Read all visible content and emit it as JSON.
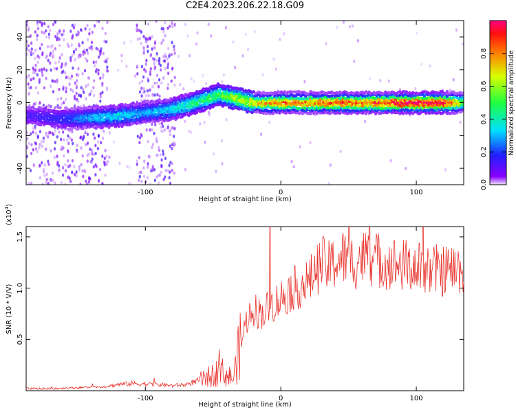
{
  "title": "C2E4.2023.206.22.18.G09",
  "colors": {
    "line": "#e8302a",
    "background": "#ffffff",
    "spectrum_low": "#7a00ff",
    "spectrum_high": "#ff0060"
  },
  "chart_data": [
    {
      "type": "heatmap",
      "title": "C2E4.2023.206.22.18.G09",
      "xlabel": "Height of straight line (km)",
      "ylabel": "Frequency (Hz)",
      "xlim": [
        -188,
        135
      ],
      "ylim": [
        -50,
        50
      ],
      "xticks": [
        -100,
        0,
        100
      ],
      "yticks": [
        -40,
        -20,
        0,
        20,
        40
      ],
      "colorbar": {
        "label": "Normalized spectral amplitude",
        "range": [
          0,
          1
        ],
        "ticks": [
          0.0,
          0.2,
          0.4,
          0.6,
          0.8
        ],
        "colormap": "rainbow (purple-blue-cyan-green-yellow-red-magenta)"
      },
      "ridge": {
        "x": [
          -180,
          -160,
          -140,
          -120,
          -100,
          -80,
          -60,
          -45,
          -35,
          -20,
          0,
          20,
          40,
          60,
          80,
          100,
          120,
          135
        ],
        "frequency": [
          -8,
          -10,
          -9,
          -8,
          -6,
          -4,
          1,
          5,
          3,
          0,
          0,
          0,
          0,
          0,
          0,
          0,
          0,
          0
        ],
        "amplitude": [
          0.15,
          0.2,
          0.3,
          0.35,
          0.3,
          0.35,
          0.45,
          0.5,
          0.6,
          0.7,
          0.8,
          0.8,
          0.85,
          0.85,
          0.9,
          1.0,
          0.95,
          0.55
        ]
      },
      "noise_regions": [
        [
          -188,
          -128
        ],
        [
          -108,
          -78
        ]
      ],
      "grid": false
    },
    {
      "type": "line",
      "xlabel": "Height of straight line (km)",
      "ylabel": "SNR (10 * V/V)",
      "y_multiplier": "(x10^4)",
      "xlim": [
        -188,
        135
      ],
      "ylim": [
        0,
        1.6
      ],
      "xticks": [
        -100,
        0,
        100
      ],
      "yticks": [
        0.5,
        1.0,
        1.5
      ],
      "grid": false,
      "series": [
        {
          "x": [
            -188,
            -170,
            -150,
            -130,
            -120,
            -110,
            -90,
            -80,
            -70,
            -60,
            -50,
            -45,
            -40,
            -35,
            -30,
            -25,
            -20,
            -15,
            -10,
            -5,
            0,
            10,
            20,
            25,
            30,
            35,
            40,
            45,
            50,
            55,
            60,
            70,
            80,
            90,
            100,
            110,
            120,
            130,
            135
          ],
          "y": [
            0.02,
            0.02,
            0.03,
            0.04,
            0.06,
            0.07,
            0.06,
            0.05,
            0.06,
            0.1,
            0.15,
            0.2,
            0.15,
            0.12,
            0.45,
            0.7,
            0.8,
            0.75,
            0.8,
            0.85,
            0.9,
            1.0,
            1.05,
            1.15,
            1.25,
            1.2,
            1.25,
            1.3,
            1.28,
            1.25,
            1.3,
            1.28,
            1.25,
            1.22,
            1.2,
            1.18,
            1.17,
            1.18,
            1.2
          ]
        }
      ]
    }
  ],
  "labels": {
    "top_xlabel": "Height of straight line (km)",
    "top_ylabel": "Frequency (Hz)",
    "bottom_xlabel": "Height of straight line (km)",
    "bottom_ylabel": "SNR (10 * V/V)",
    "bottom_multiplier": "(x10^4)",
    "colorbar_label": "Normalized spectral amplitude"
  }
}
